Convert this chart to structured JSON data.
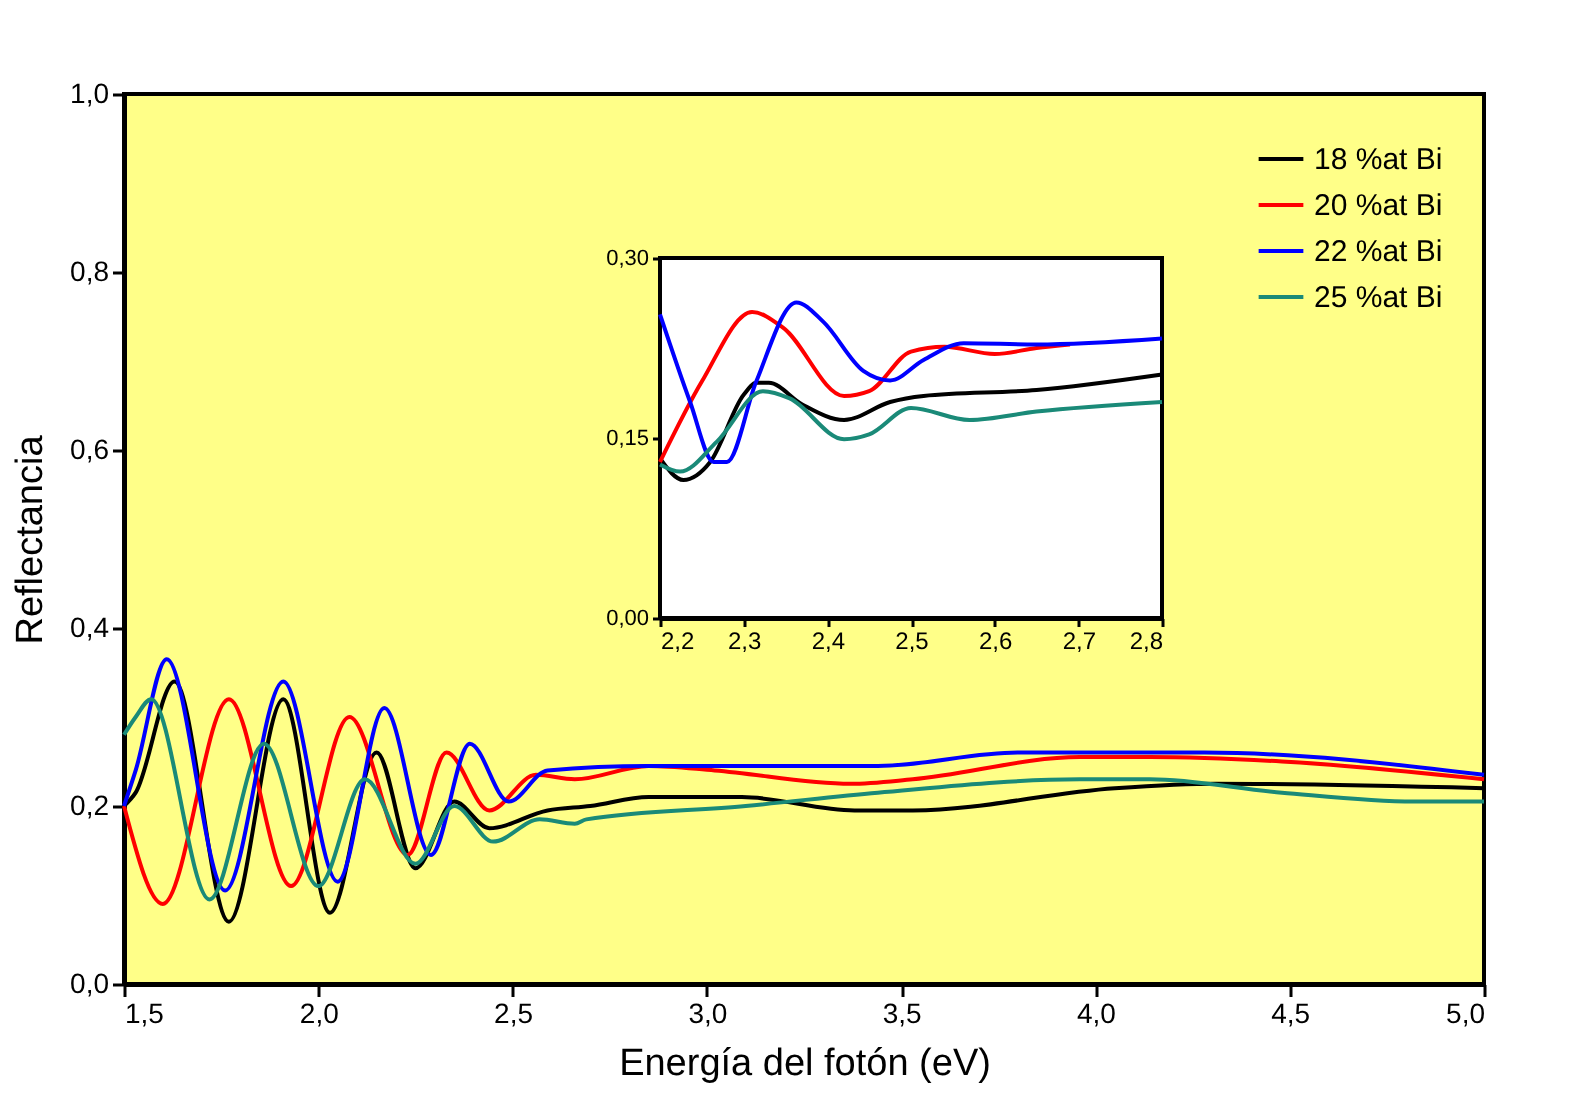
{
  "chart_data": [
    {
      "type": "line",
      "xlabel": "Energía del fotón (eV)",
      "ylabel": "Reflectancia",
      "xlim": [
        1.5,
        5.0
      ],
      "xticks": [
        {
          "value": 1.5,
          "label": "1,5"
        },
        {
          "value": 2.0,
          "label": "2,0"
        },
        {
          "value": 2.5,
          "label": "2,5"
        },
        {
          "value": 3.0,
          "label": "3,0"
        },
        {
          "value": 3.5,
          "label": "3,5"
        },
        {
          "value": 4.0,
          "label": "4,0"
        },
        {
          "value": 4.5,
          "label": "4,5"
        },
        {
          "value": 5.0,
          "label": "5,0"
        }
      ],
      "ylim": [
        0,
        1.0
      ],
      "yticks": [
        {
          "value": 0,
          "label": "0,0"
        },
        {
          "value": 0.2,
          "label": "0,2"
        },
        {
          "value": 0.4,
          "label": "0,4"
        },
        {
          "value": 0.6,
          "label": "0,6"
        },
        {
          "value": 0.8,
          "label": "0,8"
        },
        {
          "value": 1.0,
          "label": "1,0"
        }
      ],
      "grid": false,
      "legend": "top right",
      "marker": "none",
      "line_style": "solid",
      "series": [
        {
          "name": "18 %at Bi",
          "color": "#000000",
          "x": [
            1.5,
            1.53,
            1.63,
            1.77,
            1.91,
            2.03,
            2.15,
            2.25,
            2.35,
            2.44,
            2.59,
            2.7,
            2.85,
            3.09,
            3.38,
            3.53,
            4.05,
            4.31,
            5.0
          ],
          "values": [
            0.2,
            0.215,
            0.34,
            0.07,
            0.32,
            0.08,
            0.26,
            0.13,
            0.205,
            0.175,
            0.195,
            0.2,
            0.21,
            0.21,
            0.195,
            0.195,
            0.22,
            0.225,
            0.22
          ]
        },
        {
          "name": "20 %at Bi",
          "color": "#ff0000",
          "x": [
            1.5,
            1.6,
            1.77,
            1.93,
            2.08,
            2.23,
            2.33,
            2.44,
            2.56,
            2.66,
            2.85,
            3.02,
            3.37,
            3.53,
            3.96,
            4.14,
            4.48,
            5.0
          ],
          "values": [
            0.2,
            0.09,
            0.32,
            0.11,
            0.3,
            0.145,
            0.26,
            0.195,
            0.235,
            0.23,
            0.245,
            0.24,
            0.225,
            0.23,
            0.255,
            0.255,
            0.25,
            0.23
          ]
        },
        {
          "name": "22 %at Bi",
          "color": "#0000ff",
          "x": [
            1.5,
            1.53,
            1.61,
            1.76,
            1.91,
            2.05,
            2.17,
            2.29,
            2.39,
            2.49,
            2.59,
            2.85,
            3.1,
            3.44,
            3.8,
            4.02,
            4.28,
            5.0
          ],
          "values": [
            0.2,
            0.24,
            0.365,
            0.105,
            0.34,
            0.115,
            0.31,
            0.145,
            0.27,
            0.205,
            0.24,
            0.245,
            0.245,
            0.245,
            0.26,
            0.26,
            0.26,
            0.235
          ]
        },
        {
          "name": "25 %at Bi",
          "color": "#1a8a78",
          "x": [
            1.5,
            1.53,
            1.57,
            1.72,
            1.86,
            2.0,
            2.12,
            2.25,
            2.35,
            2.45,
            2.57,
            2.66,
            2.69,
            3.1,
            3.44,
            3.96,
            4.14,
            4.48,
            4.82,
            5.0
          ],
          "values": [
            0.28,
            0.3,
            0.32,
            0.095,
            0.27,
            0.11,
            0.23,
            0.135,
            0.2,
            0.16,
            0.185,
            0.18,
            0.185,
            0.2,
            0.215,
            0.23,
            0.23,
            0.215,
            0.205,
            0.205
          ]
        }
      ]
    },
    {
      "type": "line",
      "xlim": [
        2.2,
        2.8
      ],
      "xticks": [
        {
          "value": 2.2,
          "label": "2,2"
        },
        {
          "value": 2.3,
          "label": "2,3"
        },
        {
          "value": 2.4,
          "label": "2,4"
        },
        {
          "value": 2.5,
          "label": "2,5"
        },
        {
          "value": 2.6,
          "label": "2,6"
        },
        {
          "value": 2.7,
          "label": "2,7"
        },
        {
          "value": 2.8,
          "label": "2,8"
        }
      ],
      "ylim": [
        0,
        0.3
      ],
      "yticks": [
        {
          "value": 0,
          "label": "0,00"
        },
        {
          "value": 0.15,
          "label": "0,15"
        },
        {
          "value": 0.3,
          "label": "0,30"
        }
      ],
      "grid": false,
      "marker": "none",
      "line_style": "solid",
      "series": [
        {
          "color": "#000000",
          "x": [
            2.2,
            2.228,
            2.26,
            2.3,
            2.315,
            2.33,
            2.37,
            2.42,
            2.475,
            2.515,
            2.65,
            2.8
          ],
          "values": [
            0.133,
            0.115,
            0.13,
            0.186,
            0.196,
            0.196,
            0.178,
            0.165,
            0.18,
            0.185,
            0.19,
            0.203
          ]
        },
        {
          "color": "#ff0000",
          "x": [
            2.2,
            2.25,
            2.31,
            2.347,
            2.42,
            2.45,
            2.5,
            2.54,
            2.6,
            2.65,
            2.69
          ],
          "values": [
            0.13,
            0.197,
            0.255,
            0.242,
            0.185,
            0.189,
            0.222,
            0.226,
            0.22,
            0.225,
            0.228
          ]
        },
        {
          "color": "#0000ff",
          "x": [
            2.2,
            2.236,
            2.264,
            2.28,
            2.315,
            2.363,
            2.395,
            2.443,
            2.475,
            2.515,
            2.563,
            2.65,
            2.8
          ],
          "values": [
            0.253,
            0.18,
            0.13,
            0.13,
            0.197,
            0.263,
            0.247,
            0.206,
            0.198,
            0.215,
            0.229,
            0.228,
            0.233
          ]
        },
        {
          "color": "#1a8a78",
          "x": [
            2.2,
            2.224,
            2.268,
            2.323,
            2.355,
            2.42,
            2.45,
            2.5,
            2.57,
            2.65,
            2.8
          ],
          "values": [
            0.128,
            0.122,
            0.147,
            0.189,
            0.183,
            0.149,
            0.153,
            0.175,
            0.165,
            0.172,
            0.18
          ]
        }
      ]
    }
  ]
}
